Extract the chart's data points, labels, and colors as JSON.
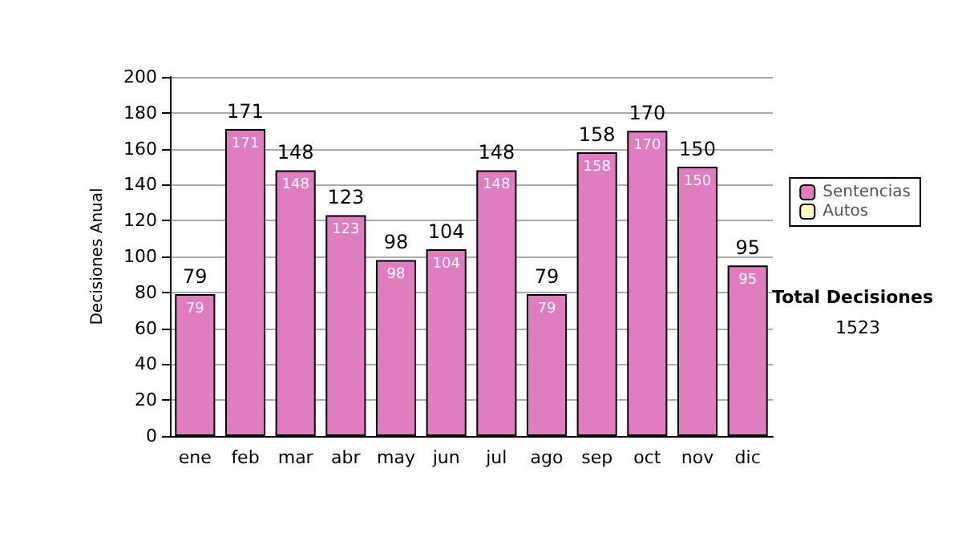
{
  "chart_data": {
    "type": "bar",
    "stacked": true,
    "ylabel": "Decisiones Anual",
    "categories": [
      "ene",
      "feb",
      "mar",
      "abr",
      "may",
      "jun",
      "jul",
      "ago",
      "sep",
      "oct",
      "nov",
      "dic"
    ],
    "series": [
      {
        "name": "Sentencias",
        "color": "#e07cc0",
        "values": [
          79,
          171,
          148,
          123,
          98,
          104,
          148,
          79,
          158,
          170,
          150,
          95
        ],
        "value_labels": [
          "79",
          "171",
          "148",
          "123",
          "98",
          "104",
          "148",
          "79",
          "158",
          "170",
          "150",
          "95"
        ]
      },
      {
        "name": "Autos",
        "color": "#ffffc0",
        "values": [
          0,
          0,
          0,
          0,
          0,
          0,
          0,
          0,
          0,
          0,
          0,
          0
        ]
      }
    ],
    "totals": [
      "79",
      "171",
      "148",
      "123",
      "98",
      "104",
      "148",
      "79",
      "158",
      "170",
      "150",
      "95"
    ],
    "ylim": [
      0,
      200
    ],
    "yticks": [
      0,
      20,
      40,
      60,
      80,
      100,
      120,
      140,
      160,
      180,
      200
    ],
    "grid": "y",
    "legend": "right",
    "annotations": [
      "Total Decisiones",
      "1523"
    ]
  }
}
